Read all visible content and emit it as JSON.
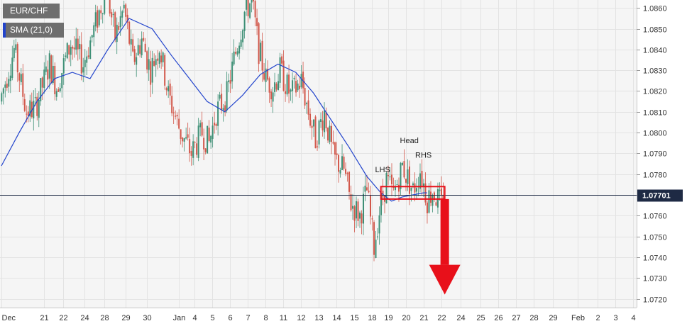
{
  "chart_data": {
    "type": "candlestick",
    "symbol": "EUR/CHF",
    "indicator": "SMA (21,0)",
    "ylim": [
      1.0716,
      1.0868
    ],
    "yticks": [
      1.072,
      1.073,
      1.074,
      1.075,
      1.076,
      1.077,
      1.078,
      1.079,
      1.08,
      1.081,
      1.082,
      1.083,
      1.084,
      1.085,
      1.086
    ],
    "ytick_labels": [
      "1.0720",
      "1.0730",
      "1.0740",
      "1.0750",
      "1.0760",
      "1.0770",
      "1.0780",
      "1.0790",
      "1.0800",
      "1.0810",
      "1.0820",
      "1.0830",
      "1.0840",
      "1.0850",
      "1.0860"
    ],
    "current_price": 1.07701,
    "current_price_label": "1.07701",
    "x_labels": [
      "Dec",
      "21",
      "22",
      "24",
      "28",
      "29",
      "30",
      "Jan",
      "4",
      "5",
      "6",
      "7",
      "8",
      "11",
      "12",
      "13",
      "14",
      "15",
      "18",
      "19",
      "20",
      "21",
      "22",
      "24",
      "25",
      "26",
      "27",
      "28",
      "29",
      "Feb",
      "2",
      "3",
      "4"
    ],
    "x_label_slots": [
      0,
      24,
      35,
      47,
      58,
      70,
      82,
      100,
      109,
      119,
      129,
      139,
      149,
      159,
      169,
      179,
      189,
      199,
      209,
      218,
      228,
      238,
      248,
      259,
      270,
      280,
      290,
      300,
      311,
      325,
      336,
      346,
      356
    ],
    "candle_count": 250,
    "sma_points": [
      [
        0,
        1.0784
      ],
      [
        10,
        1.08
      ],
      [
        20,
        1.0815
      ],
      [
        30,
        1.0826
      ],
      [
        40,
        1.0829
      ],
      [
        50,
        1.0826
      ],
      [
        60,
        1.084
      ],
      [
        72,
        1.0855
      ],
      [
        85,
        1.085
      ],
      [
        96,
        1.0837
      ],
      [
        106,
        1.0826
      ],
      [
        116,
        1.0815
      ],
      [
        126,
        1.081
      ],
      [
        136,
        1.0818
      ],
      [
        146,
        1.0828
      ],
      [
        156,
        1.0833
      ],
      [
        166,
        1.0829
      ],
      [
        176,
        1.0819
      ],
      [
        186,
        1.0806
      ],
      [
        196,
        1.0793
      ],
      [
        206,
        1.0779
      ],
      [
        214,
        1.0771
      ],
      [
        220,
        1.0767
      ],
      [
        226,
        1.0769
      ],
      [
        232,
        1.077
      ],
      [
        238,
        1.0771
      ],
      [
        240,
        1.0771
      ]
    ],
    "annotations": [
      {
        "text": "LHS",
        "slot": 215,
        "price": 1.0781
      },
      {
        "text": "Head",
        "slot": 230,
        "price": 1.0795
      },
      {
        "text": "RHS",
        "slot": 238,
        "price": 1.0788
      }
    ],
    "neckline_box": {
      "slot_start": 214,
      "slot_end": 250,
      "price_low": 1.0768,
      "price_high": 1.0774
    },
    "arrow": {
      "slot": 250,
      "price_from": 1.0768,
      "price_to": 1.0722
    },
    "colors": {
      "bull": "#3d8f75",
      "bear": "#d2574a",
      "sma": "#2244cc",
      "grid": "#e3e3e3",
      "panel": "#f5f5f5",
      "price_line": "#1e2a44",
      "box": "#e8101a",
      "arrow": "#e8101a",
      "label_bg": "#6e6e6e"
    }
  }
}
